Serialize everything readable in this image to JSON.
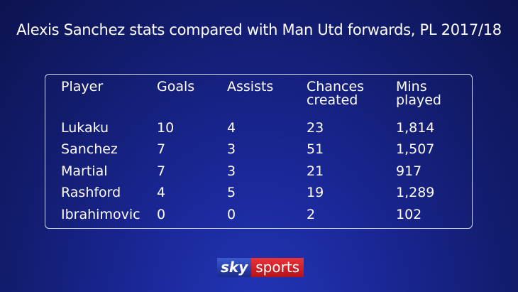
{
  "title": "Alexis Sanchez stats compared with Man Utd forwards, PL 2017/18",
  "table": {
    "headers": [
      "Player",
      "Goals",
      "Assists",
      "Chances created",
      "Mins played"
    ],
    "rows": [
      [
        "Lukaku",
        "10",
        "4",
        "23",
        "1,814"
      ],
      [
        "Sanchez",
        "7",
        "3",
        "51",
        "1,507"
      ],
      [
        "Martial",
        "7",
        "3",
        "21",
        "917"
      ],
      [
        "Rashford",
        "4",
        "5",
        "19",
        "1,289"
      ],
      [
        "Ibrahimovic",
        "0",
        "0",
        "2",
        "102"
      ]
    ]
  },
  "logo": {
    "sky": "sky",
    "sports": "sports"
  }
}
